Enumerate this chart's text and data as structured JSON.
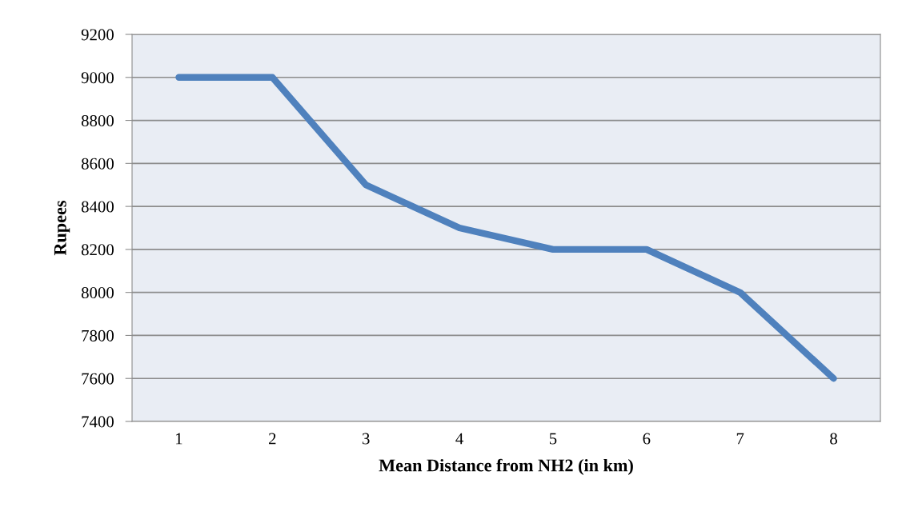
{
  "chart_data": {
    "type": "line",
    "xlabel": "Mean Distance from NH2 (in km)",
    "ylabel": "Rupees",
    "categories": [
      "1",
      "2",
      "3",
      "4",
      "5",
      "6",
      "7",
      "8"
    ],
    "series": [
      {
        "color": "#4f81bd",
        "values": [
          9000,
          9000,
          8500,
          8300,
          8200,
          8200,
          8000,
          7600
        ]
      }
    ],
    "ylim": [
      7400,
      9200
    ],
    "yticks": [
      7400,
      7600,
      7800,
      8000,
      8200,
      8400,
      8600,
      8800,
      9000,
      9200
    ],
    "grid": "y",
    "marker": "none",
    "line_style": "solid",
    "legend": false
  }
}
